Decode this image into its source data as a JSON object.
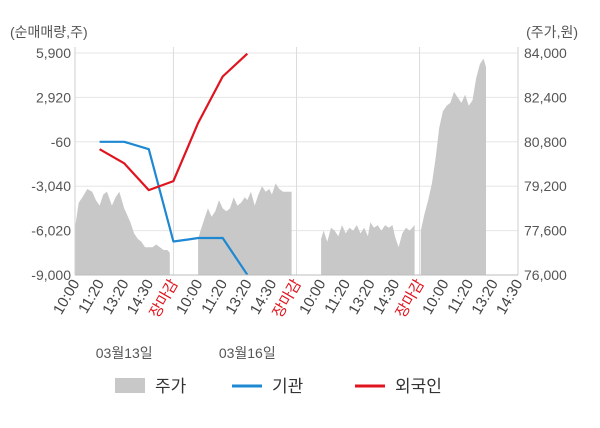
{
  "chart_data": {
    "type": "line",
    "title": "",
    "y_left_unit": "(순매매량,주)",
    "y_right_unit": "(주가,원)",
    "y_left_ticks": [
      "5,900",
      "2,920",
      "-60",
      "-3,040",
      "-6,020",
      "-9,000"
    ],
    "y_left_range": [
      -9000,
      5900
    ],
    "y_right_ticks": [
      "84,000",
      "82,400",
      "80,800",
      "79,200",
      "77,600",
      "76,000"
    ],
    "y_right_range": [
      76000,
      84000
    ],
    "x_ticks": [
      "10:00",
      "11:20",
      "13:20",
      "14:30",
      "장마감",
      "10:00",
      "11:20",
      "13:20",
      "14:30",
      "장마감",
      "10:00",
      "11:20",
      "13:20",
      "14:30",
      "장마감",
      "10:00",
      "11:20",
      "13:20",
      "14:30"
    ],
    "day_labels": [
      {
        "label": "03월13일",
        "tick_index": 2
      },
      {
        "label": "03월16일",
        "tick_index": 7
      }
    ],
    "legend": [
      {
        "name": "주가",
        "color": "#c8c8c8",
        "kind": "area"
      },
      {
        "name": "기관",
        "color": "#1e88d2",
        "kind": "line"
      },
      {
        "name": "외국인",
        "color": "#e0141e",
        "kind": "line"
      }
    ],
    "series": [
      {
        "name": "주가",
        "axis": "right",
        "segments": [
          {
            "x": [
              0,
              0.15,
              0.3,
              0.5,
              0.7,
              0.85,
              1,
              1.15,
              1.3,
              1.5,
              1.65,
              1.8,
              2,
              2.1,
              2.25,
              2.4,
              2.55,
              2.7,
              2.85,
              3,
              3.15,
              3.3,
              3.45,
              3.6,
              3.75,
              3.85
            ],
            "y": [
              77700,
              78600,
              78800,
              79100,
              79000,
              78700,
              78500,
              78900,
              79000,
              78500,
              78800,
              79000,
              78400,
              78200,
              77900,
              77500,
              77300,
              77200,
              77000,
              77000,
              77000,
              77100,
              77000,
              76900,
              76900,
              76800
            ]
          },
          {
            "x": [
              5,
              5.1,
              5.25,
              5.4,
              5.55,
              5.7,
              5.85,
              6,
              6.15,
              6.3,
              6.45,
              6.6,
              6.75,
              6.9,
              7,
              7.15,
              7.3,
              7.45,
              7.6,
              7.75,
              7.9,
              8,
              8.15,
              8.3,
              8.45,
              8.6,
              8.8
            ],
            "y": [
              77300,
              77600,
              78000,
              78400,
              78100,
              78300,
              78700,
              78400,
              78300,
              78400,
              78800,
              78500,
              78600,
              78800,
              78700,
              79000,
              78500,
              78900,
              79200,
              79000,
              79100,
              78900,
              79300,
              79100,
              79000,
              79000,
              79000
            ]
          },
          {
            "x": [
              10,
              10.1,
              10.25,
              10.4,
              10.55,
              10.7,
              10.85,
              11,
              11.15,
              11.3,
              11.45,
              11.6,
              11.75,
              11.9,
              12,
              12.15,
              12.3,
              12.45,
              12.6,
              12.75,
              12.9,
              13,
              13.15,
              13.3,
              13.45,
              13.6,
              13.8
            ],
            "y": [
              77300,
              77600,
              77200,
              77700,
              77600,
              77400,
              77800,
              77500,
              77700,
              77600,
              77800,
              77500,
              77700,
              77400,
              77900,
              77700,
              77800,
              77600,
              77800,
              77700,
              77800,
              77400,
              77000,
              77500,
              77700,
              77600,
              77800
            ]
          },
          {
            "x": [
              14.05,
              14.2,
              14.35,
              14.5,
              14.65,
              14.8,
              14.95,
              15.1,
              15.25,
              15.4,
              15.55,
              15.7,
              15.85,
              16,
              16.15,
              16.3,
              16.45,
              16.6,
              16.7
            ],
            "y": [
              77600,
              78200,
              78700,
              79300,
              80200,
              81300,
              81900,
              82100,
              82200,
              82600,
              82400,
              82200,
              82500,
              82100,
              82300,
              83100,
              83600,
              83800,
              83500
            ]
          }
        ]
      },
      {
        "name": "기관",
        "axis": "left",
        "x": [
          1,
          2,
          3,
          4,
          4.6,
          5,
          5.6,
          6,
          7
        ],
        "y": [
          -60,
          -60,
          -560,
          -6750,
          -6620,
          -6520,
          -6520,
          -6520,
          -8980
        ]
      },
      {
        "name": "외국인",
        "axis": "left",
        "x": [
          1,
          2,
          3,
          4,
          5,
          6,
          7
        ],
        "y": [
          -560,
          -1500,
          -3300,
          -2700,
          1200,
          4320,
          5850
        ]
      }
    ],
    "grid": true,
    "legend_position": "bottom"
  }
}
